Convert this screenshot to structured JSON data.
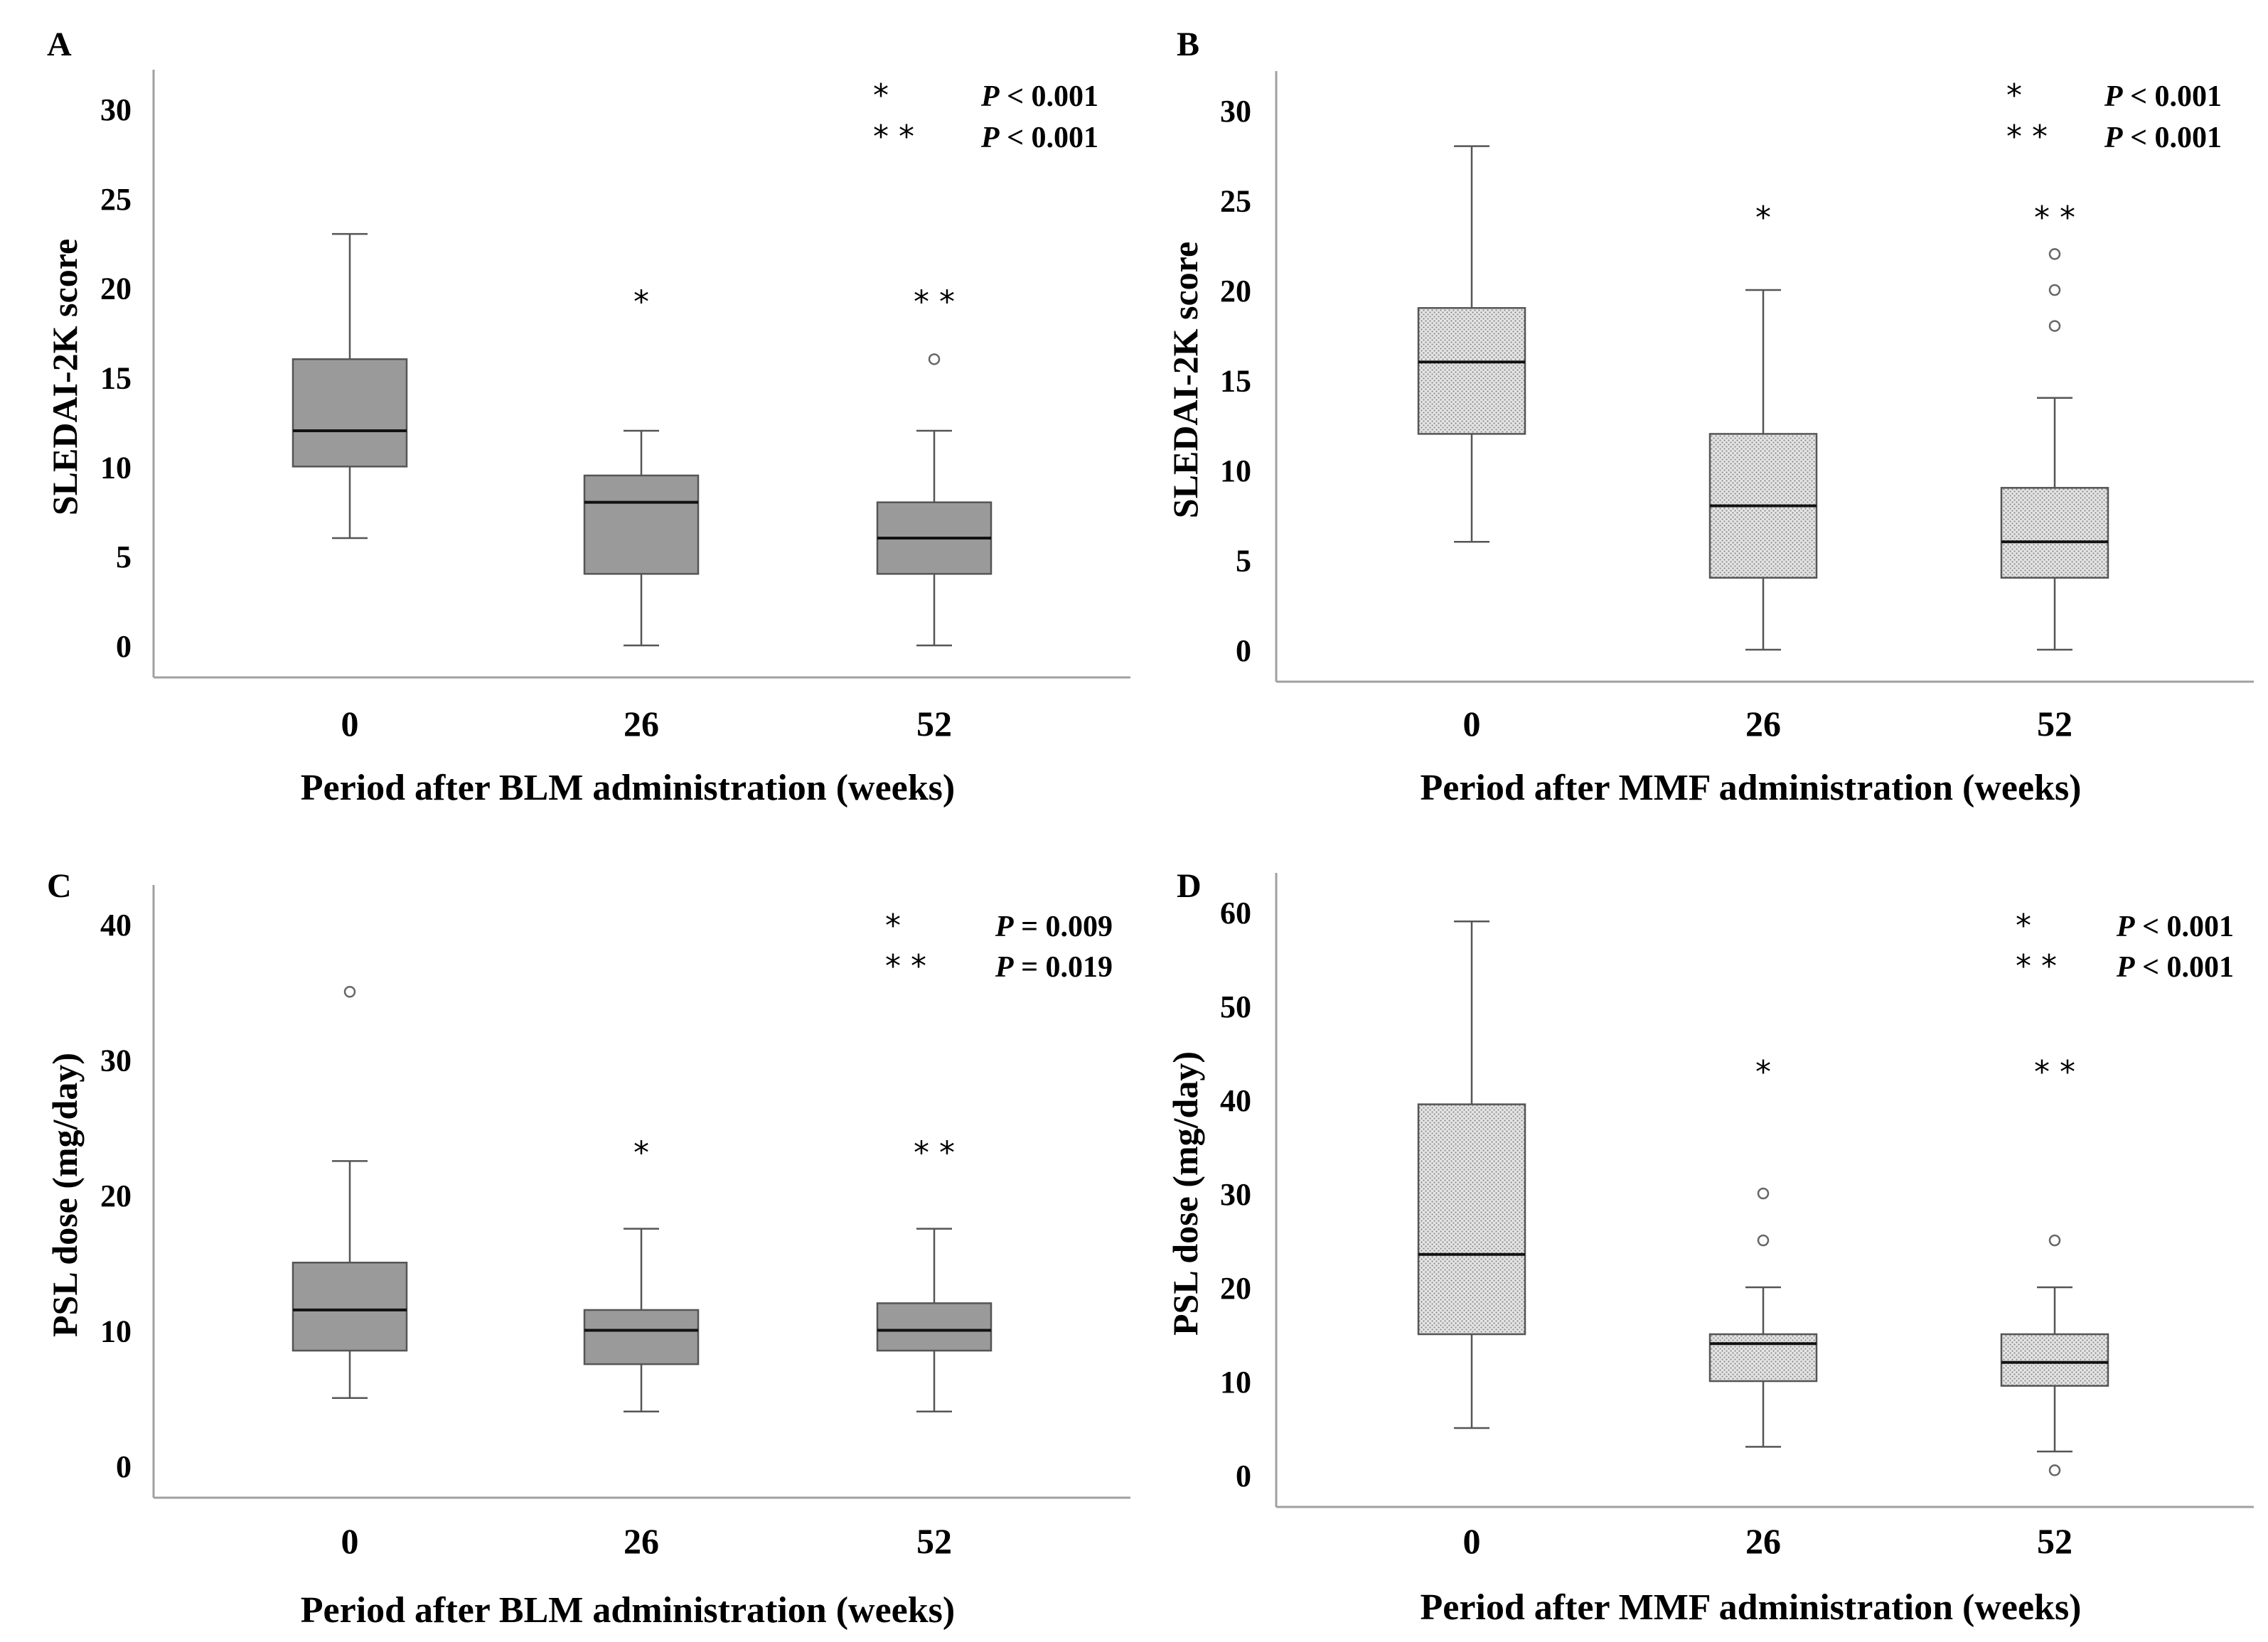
{
  "colors": {
    "solid_box": "#9a9a9a",
    "hatched_box": "#e4e4e4",
    "axis": "#a0a0a0",
    "whisker": "#555555",
    "text": "#000000"
  },
  "chart_data": [
    {
      "panel": "A",
      "type": "box",
      "fill": "solid",
      "xlabel": "Period after BLM administration (weeks)",
      "ylabel": "SLEDAI-2K score",
      "ylim": [
        0,
        30
      ],
      "yticks": [
        "0",
        "5",
        "10",
        "15",
        "20",
        "25",
        "30"
      ],
      "categories": [
        "0",
        "26",
        "52"
      ],
      "boxes": [
        {
          "min": 6,
          "q1": 10,
          "median": 12,
          "q3": 16,
          "max": 23,
          "outliers": []
        },
        {
          "min": 0,
          "q1": 4,
          "median": 8,
          "q3": 9.5,
          "max": 12,
          "outliers": []
        },
        {
          "min": 0,
          "q1": 4,
          "median": 6,
          "q3": 8,
          "max": 12,
          "outliers": [
            16
          ]
        }
      ],
      "markers": [
        {
          "category": 1,
          "text": "*",
          "y": 19.5
        },
        {
          "category": 2,
          "text": "* *",
          "y": 19.5
        }
      ],
      "stats": [
        {
          "marker": "*",
          "p_label": "P",
          "p_text": " < 0.001"
        },
        {
          "marker": "* *",
          "p_label": "P",
          "p_text": " < 0.001"
        }
      ]
    },
    {
      "panel": "B",
      "type": "box",
      "fill": "hatched",
      "xlabel": "Period after MMF administration (weeks)",
      "ylabel": "SLEDAI-2K score",
      "ylim": [
        0,
        30
      ],
      "yticks": [
        "0",
        "5",
        "10",
        "15",
        "20",
        "25",
        "30"
      ],
      "categories": [
        "0",
        "26",
        "52"
      ],
      "boxes": [
        {
          "min": 6,
          "q1": 12,
          "median": 16,
          "q3": 19,
          "max": 28,
          "outliers": []
        },
        {
          "min": 0,
          "q1": 4,
          "median": 8,
          "q3": 12,
          "max": 20,
          "outliers": []
        },
        {
          "min": 0,
          "q1": 4,
          "median": 6,
          "q3": 9,
          "max": 14,
          "outliers": [
            18,
            20,
            22
          ]
        }
      ],
      "markers": [
        {
          "category": 1,
          "text": "*",
          "y": 24.3
        },
        {
          "category": 2,
          "text": "* *",
          "y": 24.3
        }
      ],
      "stats": [
        {
          "marker": "*",
          "p_label": "P",
          "p_text": " < 0.001"
        },
        {
          "marker": "* *",
          "p_label": "P",
          "p_text": " < 0.001"
        }
      ]
    },
    {
      "panel": "C",
      "type": "box",
      "fill": "solid",
      "xlabel": "Period after BLM administration (weeks)",
      "ylabel": "PSL dose (mg/day)",
      "ylim": [
        0,
        40
      ],
      "yticks": [
        "0",
        "10",
        "20",
        "30",
        "40"
      ],
      "categories": [
        "0",
        "26",
        "52"
      ],
      "boxes": [
        {
          "min": 5,
          "q1": 8.5,
          "median": 11.5,
          "q3": 15,
          "max": 22.5,
          "outliers": [
            35
          ]
        },
        {
          "min": 4,
          "q1": 7.5,
          "median": 10,
          "q3": 11.5,
          "max": 17.5,
          "outliers": []
        },
        {
          "min": 4,
          "q1": 8.5,
          "median": 10,
          "q3": 12,
          "max": 17.5,
          "outliers": []
        }
      ],
      "markers": [
        {
          "category": 1,
          "text": "*",
          "y": 23.5
        },
        {
          "category": 2,
          "text": "* *",
          "y": 23.5
        }
      ],
      "stats": [
        {
          "marker": "*",
          "p_label": "P",
          "p_text": " = 0.009"
        },
        {
          "marker": "* *",
          "p_label": "P",
          "p_text": " = 0.019"
        }
      ]
    },
    {
      "panel": "D",
      "type": "box",
      "fill": "hatched",
      "xlabel": "Period after MMF administration (weeks)",
      "ylabel": "PSL dose (mg/day)",
      "ylim": [
        0,
        60
      ],
      "yticks": [
        "0",
        "10",
        "20",
        "30",
        "40",
        "50",
        "60"
      ],
      "categories": [
        "0",
        "26",
        "52"
      ],
      "boxes": [
        {
          "min": 5,
          "q1": 15,
          "median": 23.5,
          "q3": 39.5,
          "max": 59,
          "outliers": []
        },
        {
          "min": 3,
          "q1": 10,
          "median": 14,
          "q3": 15,
          "max": 20,
          "outliers": [
            25,
            30
          ]
        },
        {
          "min": 2.5,
          "q1": 9.5,
          "median": 12,
          "q3": 15,
          "max": 20,
          "outliers": [
            0.5,
            25
          ]
        }
      ],
      "markers": [
        {
          "category": 1,
          "text": "*",
          "y": 43.5
        },
        {
          "category": 2,
          "text": "* *",
          "y": 43.5
        }
      ],
      "stats": [
        {
          "marker": "*",
          "p_label": "P",
          "p_text": " < 0.001"
        },
        {
          "marker": "* *",
          "p_label": "P",
          "p_text": " < 0.001"
        }
      ]
    }
  ]
}
